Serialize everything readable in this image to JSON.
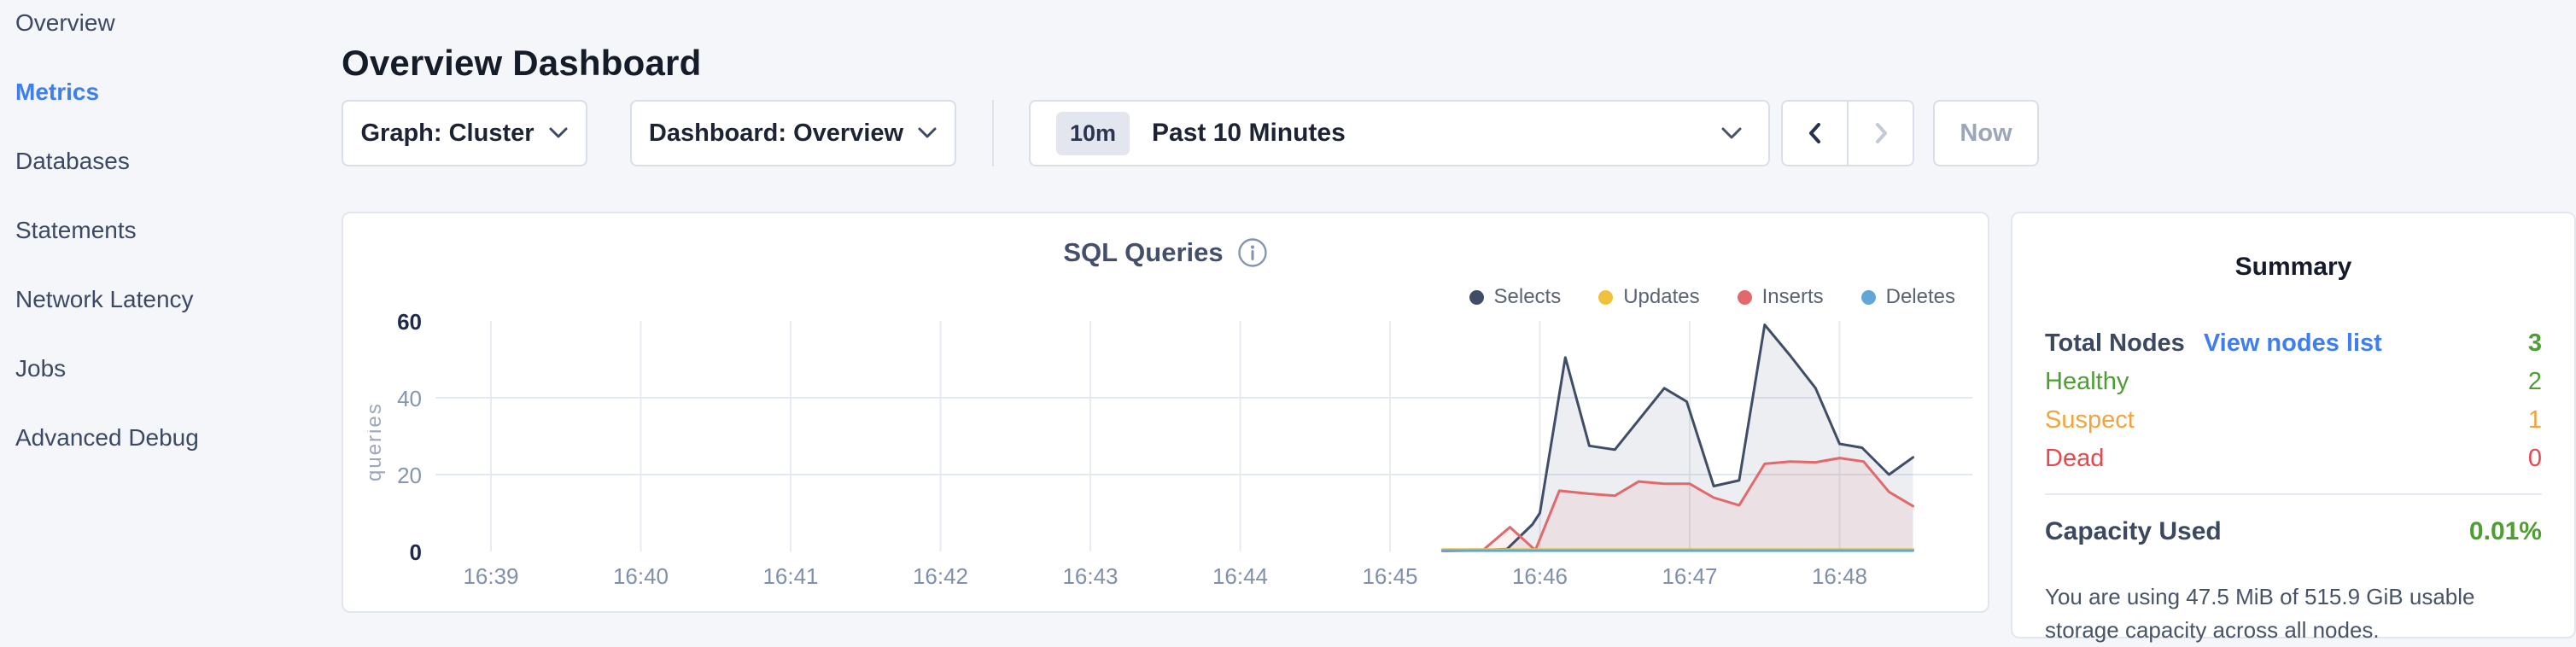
{
  "colors": {
    "accent_blue": "#3e7ef0",
    "green": "#4d9e33",
    "orange": "#f2a33c",
    "red": "#e5484d",
    "dark_navy": "#141b29"
  },
  "sidebar": {
    "items": [
      {
        "label": "Overview",
        "active": false
      },
      {
        "label": "Metrics",
        "active": true
      },
      {
        "label": "Databases",
        "active": false
      },
      {
        "label": "Statements",
        "active": false
      },
      {
        "label": "Network Latency",
        "active": false
      },
      {
        "label": "Jobs",
        "active": false
      },
      {
        "label": "Advanced Debug",
        "active": false
      }
    ]
  },
  "header": {
    "title": "Overview Dashboard"
  },
  "controls": {
    "graph_dropdown": {
      "label": "Graph: Cluster",
      "chevron_icon": "chevron-down"
    },
    "dashboard_dropdown": {
      "label": "Dashboard: Overview",
      "chevron_icon": "chevron-down"
    },
    "time_picker": {
      "badge": "10m",
      "label": "Past 10 Minutes",
      "chevron_icon": "chevron-down"
    },
    "prev_icon": "chevron-left",
    "next_icon": "chevron-right",
    "now_label": "Now"
  },
  "chart_data": {
    "type": "area",
    "title": "SQL Queries",
    "info_icon": "info-circle",
    "ylabel": "queries",
    "ylim": [
      0,
      60
    ],
    "y_ticks": [
      {
        "v": 0,
        "label": "0",
        "strong": true
      },
      {
        "v": 20,
        "label": "20",
        "strong": false
      },
      {
        "v": 40,
        "label": "40",
        "strong": false
      },
      {
        "v": 60,
        "label": "60",
        "strong": true
      }
    ],
    "grid_y_values": [
      20,
      40
    ],
    "x_ticks": [
      "16:39",
      "16:40",
      "16:41",
      "16:42",
      "16:43",
      "16:44",
      "16:45",
      "16:46",
      "16:47",
      "16:48"
    ],
    "legend_position": "top-right",
    "series": [
      {
        "name": "Selects",
        "color": "#3f4d66",
        "fill": "rgba(100,113,137,0.12)",
        "points": [
          [
            6.35,
            0.3
          ],
          [
            6.6,
            0.3
          ],
          [
            6.78,
            0.6
          ],
          [
            6.95,
            7
          ],
          [
            7.0,
            10
          ],
          [
            7.17,
            50.5
          ],
          [
            7.33,
            27.5
          ],
          [
            7.5,
            26.5
          ],
          [
            7.83,
            42.5
          ],
          [
            7.98,
            39
          ],
          [
            8.16,
            17
          ],
          [
            8.33,
            18.5
          ],
          [
            8.5,
            59
          ],
          [
            8.67,
            51
          ],
          [
            8.84,
            42.5
          ],
          [
            9.0,
            28
          ],
          [
            9.15,
            27
          ],
          [
            9.33,
            20
          ],
          [
            9.49,
            24.5
          ]
        ]
      },
      {
        "name": "Updates",
        "color": "#f0c23c",
        "fill": "none",
        "points": [
          [
            6.35,
            0.5
          ],
          [
            9.49,
            0.5
          ]
        ]
      },
      {
        "name": "Inserts",
        "color": "#e2696b",
        "fill": "rgba(226,105,107,0.10)",
        "points": [
          [
            6.35,
            0.1
          ],
          [
            6.62,
            0.3
          ],
          [
            6.8,
            6.3
          ],
          [
            6.97,
            0.3
          ],
          [
            7.13,
            15.8
          ],
          [
            7.33,
            15
          ],
          [
            7.5,
            14.5
          ],
          [
            7.66,
            18.2
          ],
          [
            7.83,
            17.6
          ],
          [
            8.0,
            17.6
          ],
          [
            8.16,
            14
          ],
          [
            8.33,
            12
          ],
          [
            8.5,
            22.8
          ],
          [
            8.67,
            23.4
          ],
          [
            8.84,
            23.2
          ],
          [
            9.0,
            24.3
          ],
          [
            9.16,
            23.4
          ],
          [
            9.33,
            15.5
          ],
          [
            9.49,
            11.8
          ]
        ]
      },
      {
        "name": "Deletes",
        "color": "#61a6d8",
        "fill": "none",
        "points": [
          [
            6.35,
            0.2
          ],
          [
            9.49,
            0.2
          ]
        ]
      }
    ]
  },
  "summary": {
    "title": "Summary",
    "total_row": {
      "label": "Total Nodes",
      "link": "View nodes list",
      "value": "3",
      "value_color": "#4d9e33"
    },
    "status_rows": [
      {
        "label": "Healthy",
        "value": "2",
        "color": "#4d9e33"
      },
      {
        "label": "Suspect",
        "value": "1",
        "color": "#f2a33c"
      },
      {
        "label": "Dead",
        "value": "0",
        "color": "#e5484d"
      }
    ],
    "capacity": {
      "label": "Capacity Used",
      "value": "0.01%",
      "value_color": "#4d9e33",
      "description": "You are using 47.5 MiB of 515.9 GiB usable storage capacity across all nodes."
    }
  }
}
